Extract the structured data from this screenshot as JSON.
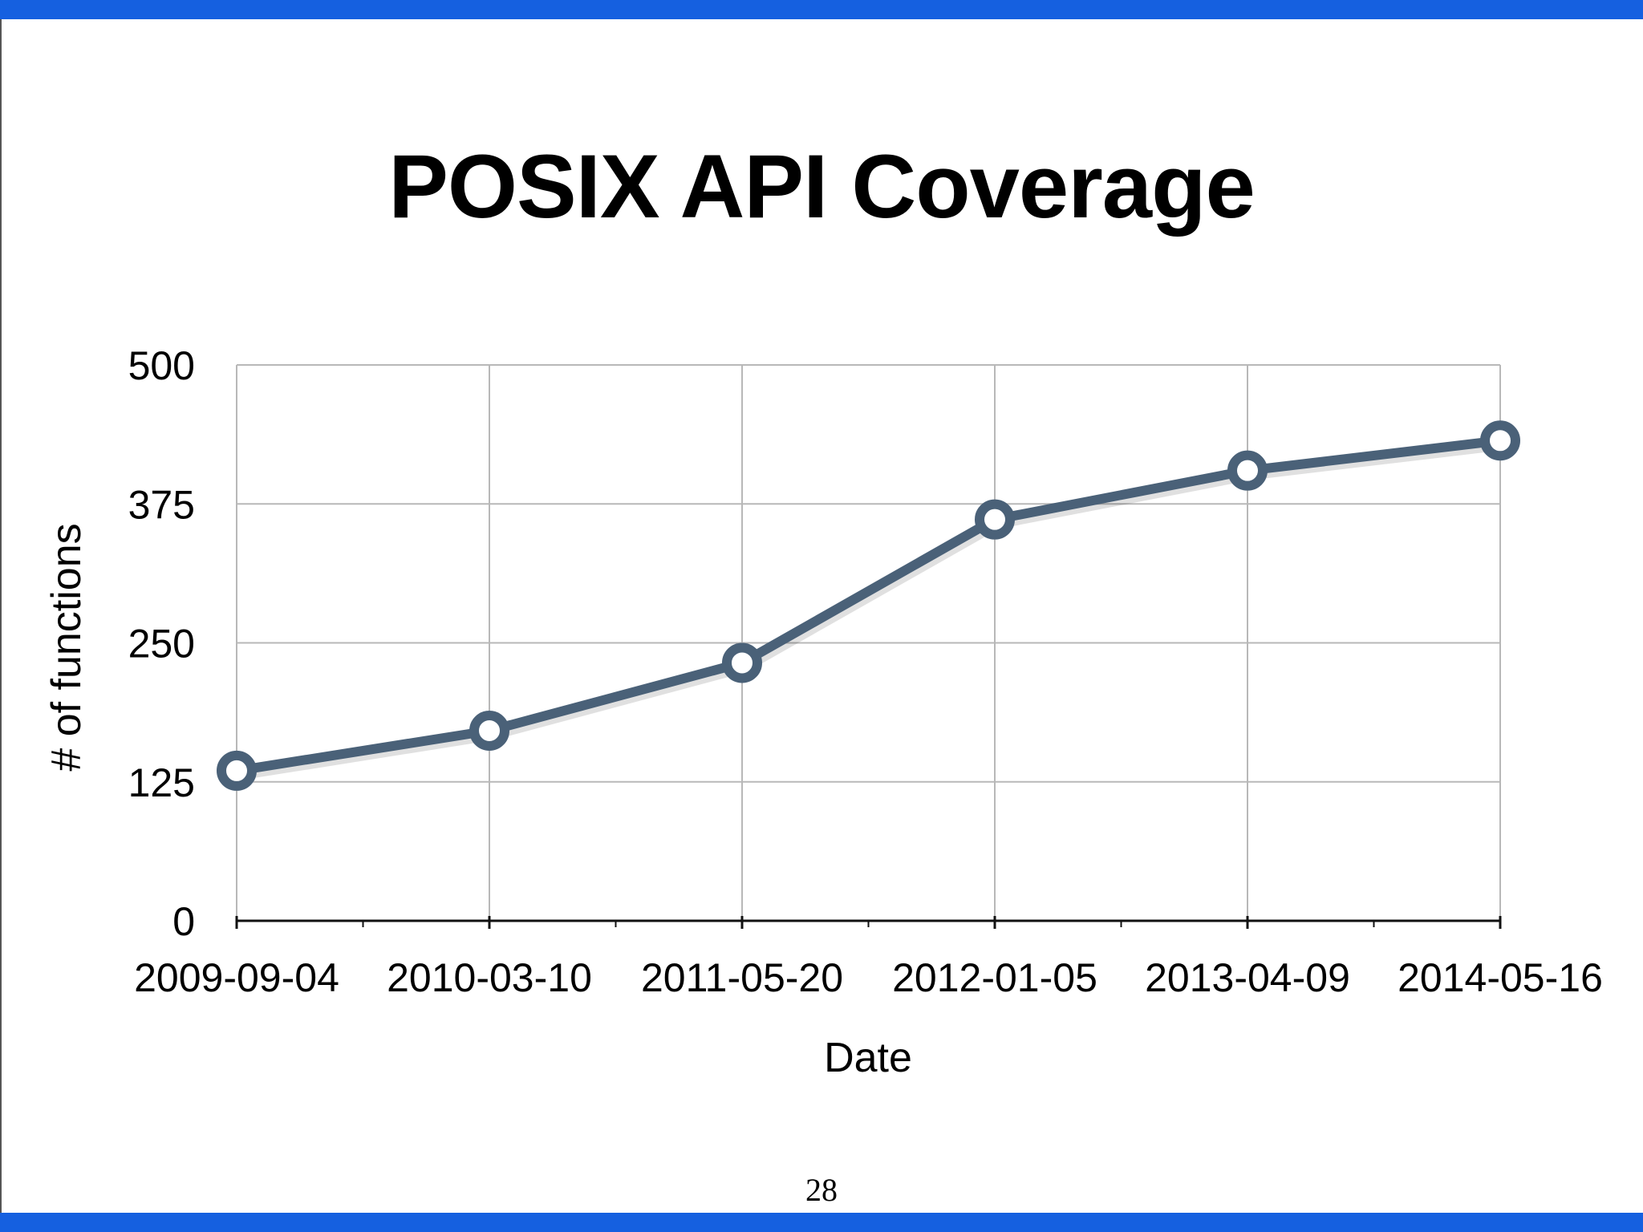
{
  "slide": {
    "title": "POSIX API Coverage",
    "page_number": "28",
    "colors": {
      "accent_bar": "#1560e0",
      "line": "#4a6178",
      "grid": "#b8b8b8"
    }
  },
  "chart_data": {
    "type": "line",
    "title": "POSIX API Coverage",
    "xlabel": "Date",
    "ylabel": "# of functions",
    "categories": [
      "2009-09-04",
      "2010-03-10",
      "2011-05-20",
      "2012-01-05",
      "2013-04-09",
      "2014-05-16"
    ],
    "series": [
      {
        "values": [
          135,
          171,
          232,
          361,
          405,
          432
        ]
      }
    ],
    "ylim": [
      0,
      500
    ],
    "yticks": [
      0,
      125,
      250,
      375,
      500
    ],
    "grid": true,
    "legend": "none"
  }
}
